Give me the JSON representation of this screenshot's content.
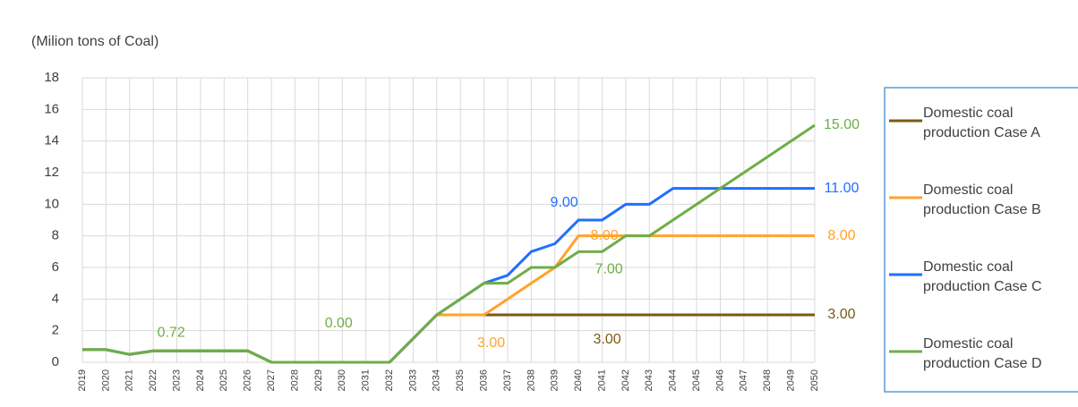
{
  "chart_data": {
    "type": "line",
    "y_axis_label": "(Milion tons of Coal)",
    "categories": [
      "2019",
      "2020",
      "2021",
      "2022",
      "2023",
      "2024",
      "2025",
      "2026",
      "2027",
      "2028",
      "2029",
      "2030",
      "2031",
      "2032",
      "2033",
      "2034",
      "2035",
      "2036",
      "2037",
      "2038",
      "2039",
      "2040",
      "2041",
      "2042",
      "2043",
      "2044",
      "2045",
      "2046",
      "2047",
      "2048",
      "2049",
      "2050"
    ],
    "ylim": [
      0,
      18
    ],
    "yticks": [
      0,
      2,
      4,
      6,
      8,
      10,
      12,
      14,
      16,
      18
    ],
    "grid": true,
    "legend": "right",
    "series": [
      {
        "name": "Domestic coal production Case A",
        "color": "#7a5a12",
        "values": [
          0.8,
          0.8,
          0.5,
          0.72,
          0.72,
          0.72,
          0.72,
          0.72,
          0,
          0,
          0,
          0,
          0,
          0,
          1.5,
          3,
          3,
          3,
          3,
          3,
          3,
          3,
          3,
          3,
          3,
          3,
          3,
          3,
          3,
          3,
          3,
          3
        ],
        "value_labels": [
          null,
          null,
          null,
          null,
          null,
          null,
          null,
          null,
          null,
          null,
          null,
          null,
          null,
          null,
          null,
          null,
          null,
          null,
          null,
          null,
          null,
          "3.00",
          null,
          null,
          null,
          null,
          null,
          null,
          null,
          null,
          null,
          "3.00"
        ]
      },
      {
        "name": "Domestic coal production Case B",
        "color": "#ffa32a",
        "values": [
          0.8,
          0.8,
          0.5,
          0.72,
          0.72,
          0.72,
          0.72,
          0.72,
          0,
          0,
          0,
          0,
          0,
          0,
          1.5,
          3,
          3,
          3,
          4,
          5,
          6,
          8,
          8,
          8,
          8,
          8,
          8,
          8,
          8,
          8,
          8,
          8
        ],
        "value_labels": [
          null,
          null,
          null,
          null,
          null,
          null,
          null,
          null,
          null,
          null,
          null,
          null,
          null,
          null,
          null,
          null,
          null,
          "3.00",
          null,
          null,
          null,
          "8.00",
          null,
          null,
          null,
          null,
          null,
          null,
          null,
          null,
          null,
          "8.00"
        ]
      },
      {
        "name": "Domestic coal production Case C",
        "color": "#1f6fff",
        "values": [
          0.8,
          0.8,
          0.5,
          0.72,
          0.72,
          0.72,
          0.72,
          0.72,
          0,
          0,
          0,
          0,
          0,
          0,
          1.5,
          3,
          4,
          5,
          5.5,
          7,
          7.5,
          9,
          9,
          10,
          10,
          11,
          11,
          11,
          11,
          11,
          11,
          11
        ],
        "value_labels": [
          null,
          null,
          null,
          null,
          null,
          null,
          null,
          null,
          null,
          null,
          null,
          null,
          null,
          null,
          null,
          null,
          null,
          null,
          null,
          null,
          null,
          "9.00",
          null,
          null,
          null,
          null,
          null,
          null,
          null,
          null,
          null,
          "11.00"
        ]
      },
      {
        "name": "Domestic coal production Case D",
        "color": "#70ad47",
        "values": [
          0.8,
          0.8,
          0.5,
          0.72,
          0.72,
          0.72,
          0.72,
          0.72,
          0,
          0,
          0,
          0,
          0,
          0,
          1.5,
          3,
          4,
          5,
          5,
          6,
          6,
          7,
          7,
          8,
          8,
          9,
          10,
          11,
          12,
          13,
          14,
          15
        ],
        "value_labels": [
          null,
          null,
          null,
          "0.72",
          null,
          null,
          null,
          null,
          null,
          null,
          null,
          "0.00",
          null,
          null,
          null,
          null,
          null,
          null,
          null,
          null,
          null,
          "7.00",
          null,
          null,
          null,
          null,
          null,
          null,
          null,
          null,
          null,
          "15.00"
        ]
      }
    ]
  }
}
